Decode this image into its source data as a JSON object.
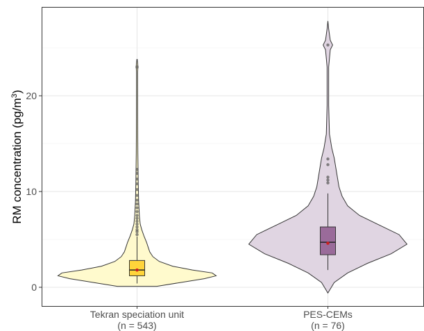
{
  "chart_data": {
    "type": "violin",
    "title": "",
    "ylabel": "RM concentration (pg/m³)",
    "ylabel_parts": {
      "main": "RM concentration (pg/m",
      "superscript": "3",
      "close": ")"
    },
    "ylim": [
      -2,
      29.2
    ],
    "yticks": [
      0,
      10,
      20
    ],
    "ytick_labels": [
      "0",
      "10",
      "20"
    ],
    "grid": true,
    "legend": "none",
    "categories": [
      {
        "name": "Tekran speciation unit",
        "n_label": "(n = 543)",
        "fill_color": "#FFFACD",
        "box_color": "#FFD43A",
        "range": [
          0.1,
          23.8
        ],
        "density": [
          [
            0.1,
            0.25
          ],
          [
            0.5,
            0.55
          ],
          [
            0.9,
            0.85
          ],
          [
            1.2,
            1.0
          ],
          [
            1.5,
            0.95
          ],
          [
            1.8,
            0.7
          ],
          [
            2.2,
            0.45
          ],
          [
            2.7,
            0.28
          ],
          [
            3.2,
            0.2
          ],
          [
            3.7,
            0.16
          ],
          [
            4.2,
            0.14
          ],
          [
            4.7,
            0.12
          ],
          [
            5.3,
            0.09
          ],
          [
            6.0,
            0.06
          ],
          [
            6.6,
            0.04
          ],
          [
            7.4,
            0.03
          ],
          [
            9.0,
            0.02
          ],
          [
            11.0,
            0.015
          ],
          [
            14.0,
            0.01
          ],
          [
            18.0,
            0.007
          ],
          [
            22.5,
            0.006
          ],
          [
            23.0,
            0.012
          ],
          [
            23.5,
            0.006
          ],
          [
            23.8,
            0.002
          ]
        ],
        "box": {
          "q1": 1.2,
          "median": 1.8,
          "q3": 2.8,
          "whisker_low": 0.4,
          "whisker_high": 5.3
        },
        "mean": 1.8,
        "outliers": [
          5.5,
          5.8,
          6.0,
          6.3,
          6.6,
          6.9,
          7.2,
          7.5,
          7.9,
          8.3,
          8.7,
          9.1,
          9.6,
          10.2,
          10.8,
          11.3,
          11.9,
          12.3,
          23.0
        ]
      },
      {
        "name": "PES-CEMs",
        "n_label": "(n = 76)",
        "fill_color": "#E0D5E2",
        "box_color": "#9A6B9A",
        "range": [
          -0.6,
          27.8
        ],
        "density": [
          [
            -0.6,
            0.0
          ],
          [
            0.5,
            0.08
          ],
          [
            1.5,
            0.25
          ],
          [
            2.5,
            0.5
          ],
          [
            3.5,
            0.8
          ],
          [
            4.5,
            1.0
          ],
          [
            5.5,
            0.9
          ],
          [
            6.5,
            0.65
          ],
          [
            7.5,
            0.4
          ],
          [
            8.5,
            0.25
          ],
          [
            9.5,
            0.18
          ],
          [
            10.5,
            0.14
          ],
          [
            11.5,
            0.12
          ],
          [
            12.5,
            0.1
          ],
          [
            13.5,
            0.08
          ],
          [
            14.5,
            0.05
          ],
          [
            16.0,
            0.02
          ],
          [
            19.0,
            0.01
          ],
          [
            23.0,
            0.01
          ],
          [
            24.8,
            0.03
          ],
          [
            25.3,
            0.06
          ],
          [
            25.8,
            0.03
          ],
          [
            27.0,
            0.01
          ],
          [
            27.8,
            0.0
          ]
        ],
        "box": {
          "q1": 3.4,
          "median": 4.7,
          "q3": 6.3,
          "whisker_low": 1.8,
          "whisker_high": 9.8
        },
        "mean": 4.6,
        "outliers": [
          10.9,
          11.2,
          11.5,
          12.8,
          13.4,
          25.3
        ]
      }
    ]
  }
}
